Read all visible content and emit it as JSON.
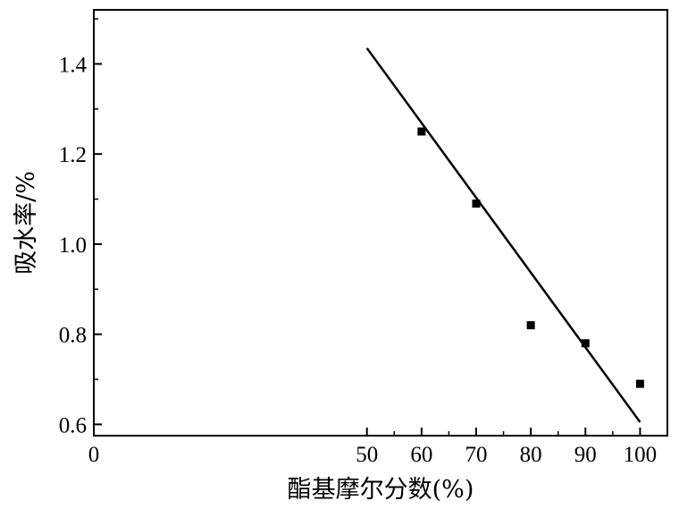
{
  "chart_data": {
    "type": "scatter",
    "xlabel": "酯基摩尔分数(%)",
    "ylabel": "吸水率/%",
    "xlim": [
      0,
      105
    ],
    "ylim": [
      0.575,
      1.52
    ],
    "x_ticks": [
      "0",
      "50",
      "60",
      "70",
      "80",
      "90",
      "100"
    ],
    "y_ticks": [
      "0.6",
      "0.8",
      "1.0",
      "1.2",
      "1.4"
    ],
    "grid": false,
    "series": [
      {
        "marker": "square",
        "color": "#000000",
        "points": [
          {
            "x": 60,
            "y": 1.25
          },
          {
            "x": 70,
            "y": 1.09
          },
          {
            "x": 80,
            "y": 0.82
          },
          {
            "x": 90,
            "y": 0.78
          },
          {
            "x": 100,
            "y": 0.69
          }
        ]
      }
    ],
    "fit_line": {
      "color": "#000000",
      "points": [
        {
          "x": 50,
          "y": 1.435
        },
        {
          "x": 100,
          "y": 0.605
        }
      ]
    }
  }
}
